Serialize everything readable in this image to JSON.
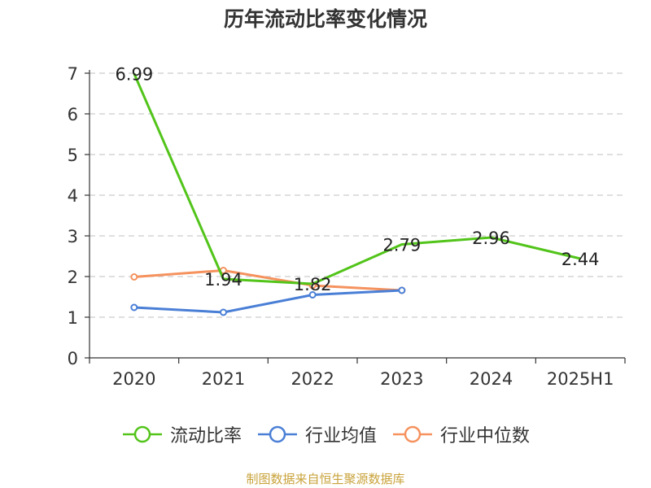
{
  "chart_data": {
    "type": "line",
    "title": "历年流动比率变化情况",
    "categories": [
      "2020",
      "2021",
      "2022",
      "2023",
      "2024",
      "2025H1"
    ],
    "ylim": [
      0,
      7
    ],
    "yticks": [
      "0",
      "1",
      "2",
      "3",
      "4",
      "5",
      "6",
      "7"
    ],
    "grid": true,
    "legend_position": "bottom",
    "series": [
      {
        "name": "流动比率",
        "color": "#52c41a",
        "values": [
          6.99,
          1.94,
          1.82,
          2.79,
          2.96,
          2.44
        ],
        "labels": [
          "6.99",
          "1.94",
          "1.82",
          "2.79",
          "2.96",
          "2.44"
        ],
        "show_markers": false
      },
      {
        "name": "行业均值",
        "color": "#4a7fd6",
        "values": [
          1.24,
          1.12,
          1.55,
          1.66,
          null,
          null
        ],
        "show_markers": true
      },
      {
        "name": "行业中位数",
        "color": "#f5925e",
        "values": [
          1.99,
          2.15,
          1.78,
          1.66,
          null,
          null
        ],
        "show_markers": true
      }
    ],
    "source": "制图数据来自恒生聚源数据库"
  }
}
